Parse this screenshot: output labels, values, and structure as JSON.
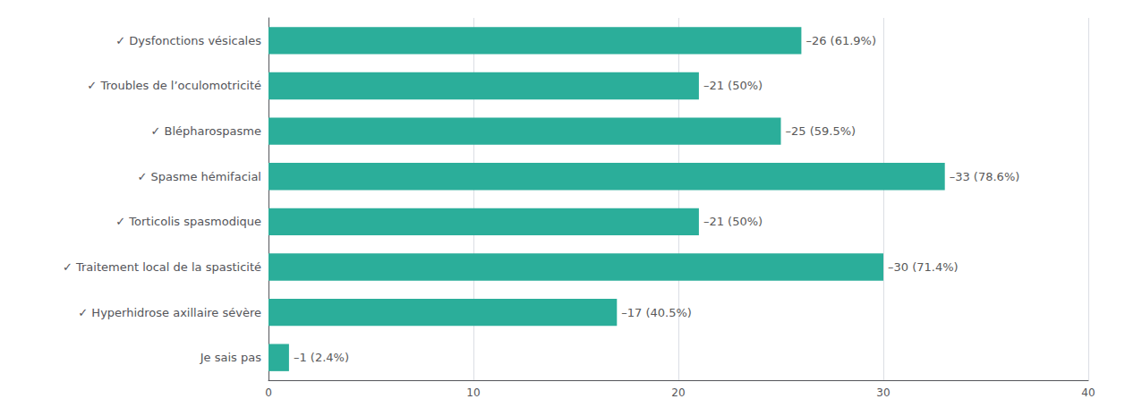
{
  "chart_data": {
    "type": "bar",
    "orientation": "horizontal",
    "categories": [
      "✓ Dysfonctions vésicales",
      "✓ Troubles de l’oculomotricité",
      "✓ Blépharospasme",
      "✓ Spasme hémifacial",
      "✓ Torticolis spasmodique",
      "✓ Traitement local de la spasticité",
      "✓ Hyperhidrose axillaire sévère",
      "Je sais pas"
    ],
    "values": [
      26,
      21,
      25,
      33,
      21,
      30,
      17,
      1
    ],
    "value_labels": [
      "–26 (61.9%)",
      "–21 (50%)",
      "–25 (59.5%)",
      "–33 (78.6%)",
      "–21 (50%)",
      "–30 (71.4%)",
      "–17 (40.5%)",
      "–1 (2.4%)"
    ],
    "data_labels": true,
    "color": "#2BAE9A",
    "xlim": [
      0,
      40
    ],
    "xticks": [
      0,
      10,
      20,
      30,
      40
    ],
    "grid": true
  }
}
